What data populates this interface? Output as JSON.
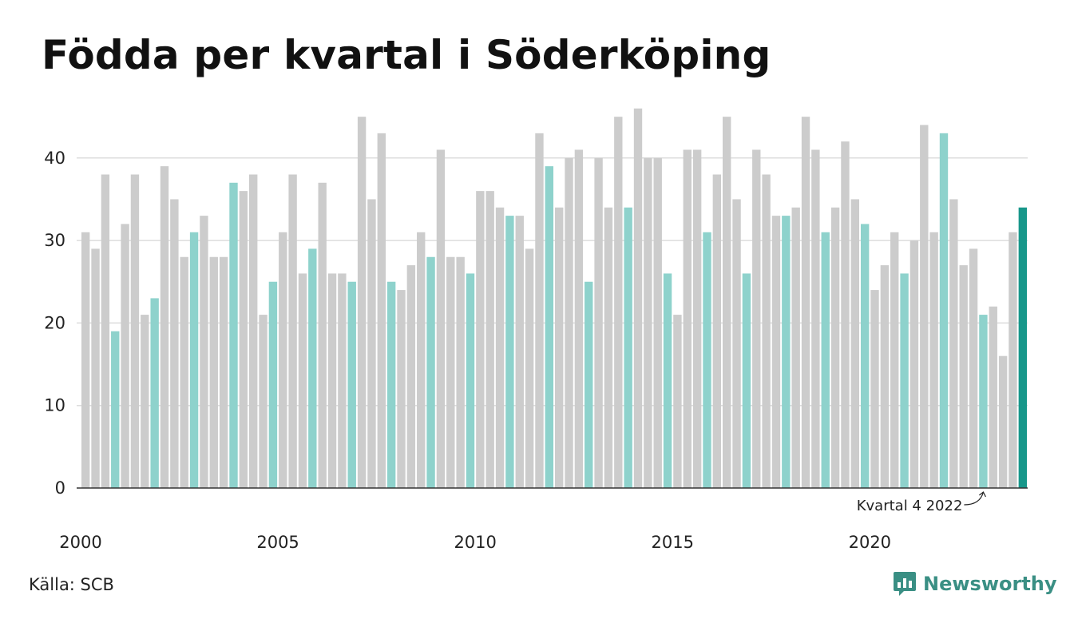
{
  "title": "Födda per kvartal i Söderköping",
  "source": "Källa: SCB",
  "brand": {
    "name": "Newsworthy",
    "icon": "newsworthy-logo-icon",
    "color": "#3a8f84"
  },
  "colors": {
    "regular": "#cccccc",
    "highlight": "#8ed2cc",
    "latest": "#17978a",
    "grid": "#dddddd",
    "axis": "#333333"
  },
  "chart_data": {
    "type": "bar",
    "title": "Födda per kvartal i Söderköping",
    "ylim": [
      0,
      46
    ],
    "yticks": [
      0,
      10,
      20,
      30,
      40
    ],
    "xticks": [
      "2000",
      "2005",
      "2010",
      "2015",
      "2020"
    ],
    "grid": true,
    "highlight_quarter": 4,
    "series": [
      {
        "values": [
          31,
          29,
          38,
          19,
          32,
          38,
          21,
          23,
          39,
          35,
          28,
          31,
          33,
          28,
          28,
          37,
          36,
          38,
          21,
          25,
          31,
          38,
          26,
          29,
          37,
          26,
          26,
          25,
          45,
          35,
          43,
          25,
          24,
          27,
          31,
          28,
          41,
          28,
          28,
          26,
          36,
          36,
          34,
          33,
          33,
          29,
          43,
          39,
          34,
          40,
          41,
          25,
          40,
          34,
          45,
          34,
          46,
          40,
          40,
          26,
          21,
          41,
          41,
          31,
          38,
          45,
          35,
          26,
          41,
          38,
          33,
          33,
          34,
          45,
          41,
          31,
          34,
          42,
          35,
          32,
          24,
          27,
          31,
          26,
          30,
          44,
          31,
          43,
          35,
          27,
          29,
          21,
          22,
          16,
          31,
          34
        ]
      }
    ],
    "annotation": {
      "text": "Kvartal 4 2022",
      "quarter_index": 91
    }
  }
}
